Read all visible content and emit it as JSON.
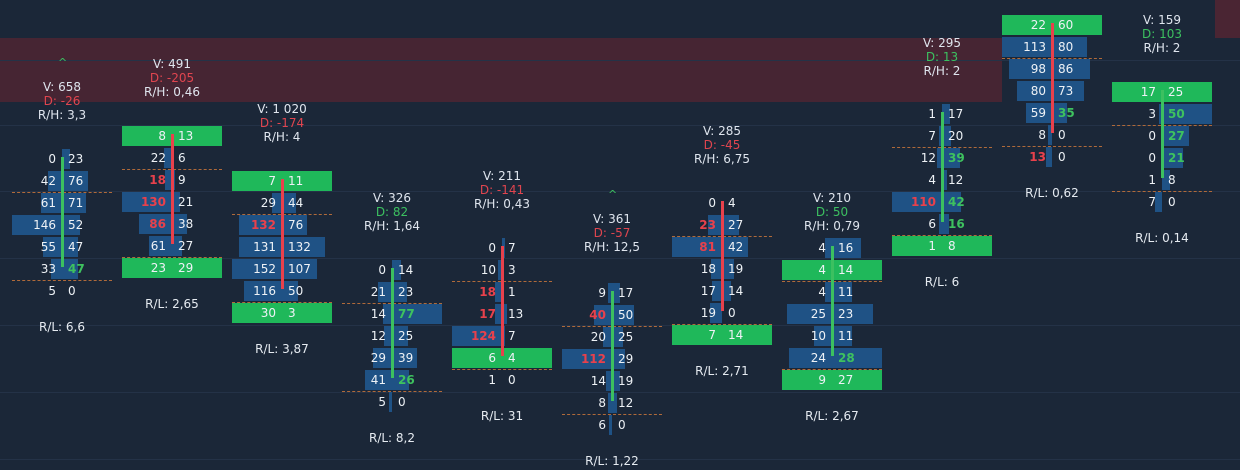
{
  "colors": {
    "background": "#1b2738",
    "bid_ask_bar": "#1f5285",
    "poc": "#1fb85a",
    "red": "#e8414c",
    "green": "#3ec25f",
    "band": "#4a2533"
  },
  "icons": [
    "chevron-up-icon"
  ],
  "columns": [
    {
      "label": {
        "v": "V: 658",
        "d": "D: -26",
        "rh": "R/H: 3,3"
      },
      "delta_sign": "neg",
      "candle": "up",
      "chevron": true,
      "rl": "R/L: 6,6",
      "rows": [
        {
          "b": "0",
          "a": "23"
        },
        {
          "b": "42",
          "a": "76"
        },
        {
          "b": "61",
          "a": "71"
        },
        {
          "b": "146",
          "a": "52"
        },
        {
          "b": "55",
          "a": "47"
        },
        {
          "b": "33",
          "a": "47",
          "a_style": "grn"
        },
        {
          "b": "5",
          "a": "0"
        }
      ]
    },
    {
      "label": {
        "v": "V: 491",
        "d": "D: -205",
        "rh": "R/H: 0,46"
      },
      "delta_sign": "neg",
      "candle": "down",
      "chevron": false,
      "rl": "R/L: 2,65",
      "rows": [
        {
          "b": "8",
          "a": "13",
          "poc": true
        },
        {
          "b": "22",
          "a": "6"
        },
        {
          "b": "18",
          "a": "9",
          "b_style": "red"
        },
        {
          "b": "130",
          "a": "21",
          "b_style": "red"
        },
        {
          "b": "86",
          "a": "38",
          "b_style": "red"
        },
        {
          "b": "61",
          "a": "27"
        },
        {
          "b": "23",
          "a": "29",
          "poc": true
        }
      ]
    },
    {
      "label": {
        "v": "V: 1 020",
        "d": "D: -174",
        "rh": "R/H: 4"
      },
      "delta_sign": "neg",
      "candle": "down",
      "chevron": false,
      "rl": "R/L: 3,87",
      "rows": [
        {
          "b": "7",
          "a": "11",
          "poc": true
        },
        {
          "b": "29",
          "a": "44"
        },
        {
          "b": "132",
          "a": "76",
          "b_style": "red"
        },
        {
          "b": "131",
          "a": "132"
        },
        {
          "b": "152",
          "a": "107"
        },
        {
          "b": "116",
          "a": "50"
        },
        {
          "b": "30",
          "a": "3",
          "poc": true
        }
      ]
    },
    {
      "label": {
        "v": "V: 326",
        "d": "D: 82",
        "rh": "R/H: 1,64"
      },
      "delta_sign": "pos",
      "candle": "up",
      "chevron": false,
      "rl": "R/L: 8,2",
      "rows": [
        {
          "b": "0",
          "a": "14"
        },
        {
          "b": "21",
          "a": "23"
        },
        {
          "b": "14",
          "a": "77",
          "a_style": "grn"
        },
        {
          "b": "12",
          "a": "25"
        },
        {
          "b": "29",
          "a": "39"
        },
        {
          "b": "41",
          "a": "26",
          "a_style": "grn"
        },
        {
          "b": "5",
          "a": "0"
        }
      ]
    },
    {
      "label": {
        "v": "V: 211",
        "d": "D: -141",
        "rh": "R/H: 0,43"
      },
      "delta_sign": "neg",
      "candle": "down",
      "chevron": false,
      "rl": "R/L: 31",
      "rows": [
        {
          "b": "0",
          "a": "7"
        },
        {
          "b": "10",
          "a": "3"
        },
        {
          "b": "18",
          "a": "1",
          "b_style": "red"
        },
        {
          "b": "17",
          "a": "13",
          "b_style": "red"
        },
        {
          "b": "124",
          "a": "7",
          "b_style": "red"
        },
        {
          "b": "6",
          "a": "4",
          "poc": true
        },
        {
          "b": "1",
          "a": "0"
        }
      ]
    },
    {
      "label": {
        "v": "V: 361",
        "d": "D: -57",
        "rh": "R/H: 12,5"
      },
      "delta_sign": "neg",
      "candle": "up",
      "chevron": true,
      "rl": "R/L: 1,22",
      "rows": [
        {
          "b": "9",
          "a": "17"
        },
        {
          "b": "40",
          "a": "50",
          "b_style": "red"
        },
        {
          "b": "20",
          "a": "25"
        },
        {
          "b": "112",
          "a": "29",
          "b_style": "red"
        },
        {
          "b": "14",
          "a": "19"
        },
        {
          "b": "8",
          "a": "12"
        },
        {
          "b": "6",
          "a": "0"
        }
      ]
    },
    {
      "label": {
        "v": "V: 285",
        "d": "D: -45",
        "rh": "R/H: 6,75"
      },
      "delta_sign": "neg",
      "candle": "down",
      "chevron": false,
      "rl": "R/L: 2,71",
      "rows": [
        {
          "b": "0",
          "a": "4"
        },
        {
          "b": "23",
          "a": "27",
          "b_style": "red"
        },
        {
          "b": "81",
          "a": "42",
          "b_style": "red"
        },
        {
          "b": "18",
          "a": "19"
        },
        {
          "b": "17",
          "a": "14"
        },
        {
          "b": "19",
          "a": "0"
        },
        {
          "b": "7",
          "a": "14",
          "poc": true
        }
      ]
    },
    {
      "label": {
        "v": "V: 210",
        "d": "D: 50",
        "rh": "R/H: 0,79"
      },
      "delta_sign": "pos",
      "candle": "up",
      "chevron": false,
      "rl": "R/L: 2,67",
      "rows": [
        {
          "b": "4",
          "a": "16"
        },
        {
          "b": "4",
          "a": "14",
          "poc": true
        },
        {
          "b": "4",
          "a": "11"
        },
        {
          "b": "25",
          "a": "23"
        },
        {
          "b": "10",
          "a": "11"
        },
        {
          "b": "24",
          "a": "28",
          "a_style": "grn"
        },
        {
          "b": "9",
          "a": "27",
          "poc": true
        }
      ]
    },
    {
      "label": {
        "v": "V: 295",
        "d": "D: 13",
        "rh": "R/H: 2"
      },
      "delta_sign": "pos",
      "candle": "up",
      "chevron": false,
      "rl": "R/L: 6",
      "rows": [
        {
          "b": "1",
          "a": "17"
        },
        {
          "b": "7",
          "a": "20"
        },
        {
          "b": "12",
          "a": "39",
          "a_style": "grn"
        },
        {
          "b": "4",
          "a": "12"
        },
        {
          "b": "110",
          "a": "42",
          "b_style": "red",
          "a_style": "grn"
        },
        {
          "b": "6",
          "a": "16",
          "a_style": "grn"
        },
        {
          "b": "1",
          "a": "8",
          "poc": true
        }
      ]
    },
    {
      "label": {
        "v": "",
        "d": "",
        "rh": ""
      },
      "delta_sign": "pos",
      "candle": "down",
      "chevron": false,
      "rl": "R/L: 0,62",
      "rows": [
        {
          "b": "22",
          "a": "60",
          "poc": true
        },
        {
          "b": "113",
          "a": "80"
        },
        {
          "b": "98",
          "a": "86"
        },
        {
          "b": "80",
          "a": "73"
        },
        {
          "b": "59",
          "a": "35",
          "a_style": "grn"
        },
        {
          "b": "8",
          "a": "0"
        },
        {
          "b": "13",
          "a": "0",
          "b_style": "red"
        }
      ]
    },
    {
      "label": {
        "v": "V: 159",
        "d": "D: 103",
        "rh": "R/H: 2"
      },
      "delta_sign": "pos",
      "candle": "up",
      "chevron": false,
      "rl": "R/L: 0,14",
      "rows": [
        {
          "b": "17",
          "a": "25",
          "poc": true
        },
        {
          "b": "3",
          "a": "50",
          "a_style": "grn"
        },
        {
          "b": "0",
          "a": "27",
          "a_style": "grn"
        },
        {
          "b": "0",
          "a": "21",
          "a_style": "grn"
        },
        {
          "b": "1",
          "a": "8"
        },
        {
          "b": "7",
          "a": "0"
        }
      ]
    }
  ]
}
